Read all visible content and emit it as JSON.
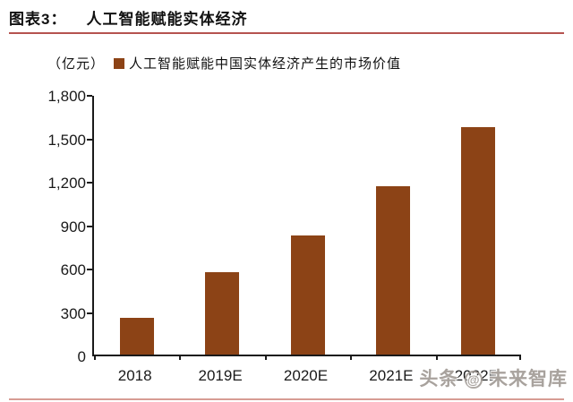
{
  "header": {
    "label": "图表3：",
    "title": "人工智能赋能实体经济"
  },
  "legend": {
    "unit": "（亿元）",
    "series_label": "人工智能赋能中国实体经济产生的市场价值"
  },
  "chart_data": {
    "type": "bar",
    "categories": [
      "2018",
      "2019E",
      "2020E",
      "2021E",
      "2022E"
    ],
    "values": [
      251,
      570,
      820,
      1161,
      1573
    ],
    "title": "人工智能赋能实体经济",
    "xlabel": "",
    "ylabel": "（亿元）",
    "ylim": [
      0,
      1800
    ],
    "ytick_interval": 300,
    "ytick_labels": [
      "0",
      "300",
      "600",
      "900",
      "1,200",
      "1,500",
      "1,800"
    ],
    "legend": [
      "人工智能赋能中国实体经济产生的市场价值"
    ],
    "legend_position": "top",
    "grid": false,
    "bar_color": "#8c4316"
  },
  "watermark": {
    "prefix": "头条",
    "at": "@",
    "suffix": "未来智库"
  },
  "colors": {
    "bar": "#8c4316",
    "title_rule": "#b5534f",
    "bottom_rule": "#d79c94",
    "axis": "#1a1a1a"
  }
}
